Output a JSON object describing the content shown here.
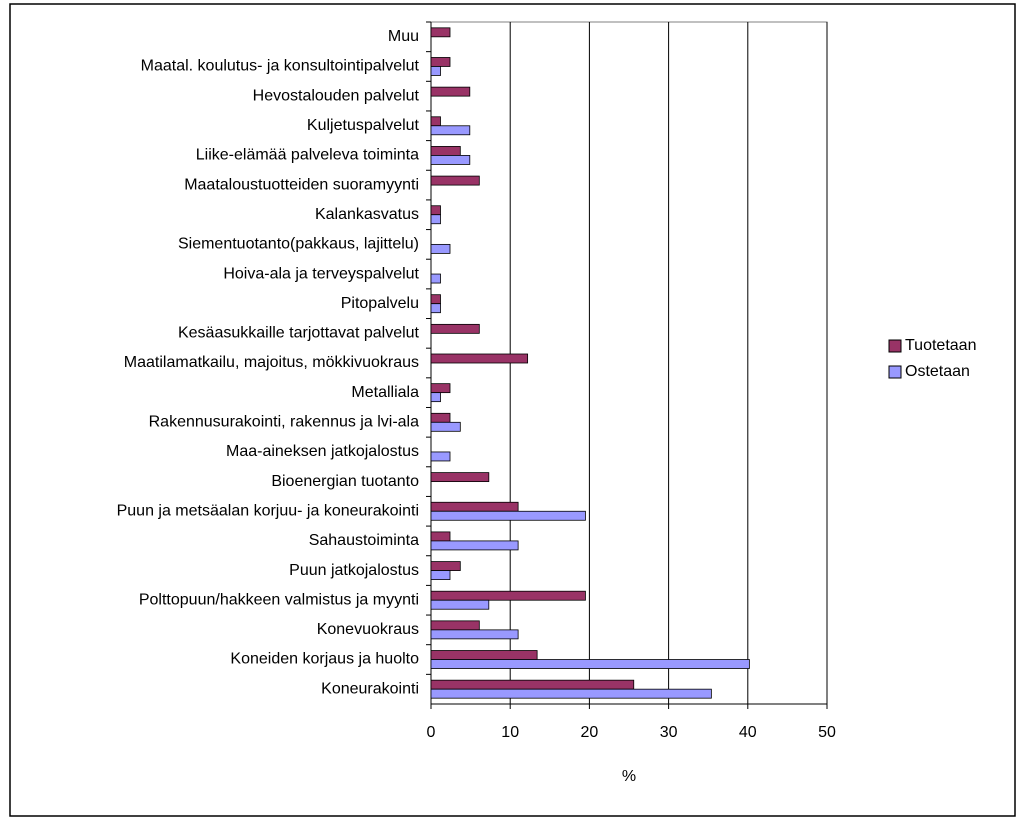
{
  "chart_data": {
    "type": "bar",
    "orientation": "horizontal",
    "categories": [
      "Muu",
      "Maatal. koulutus- ja konsultointipalvelut",
      "Hevostalouden palvelut",
      "Kuljetuspalvelut",
      "Liike-elämää palveleva toiminta",
      "Maataloustuotteiden suoramyynti",
      "Kalankasvatus",
      "Siementuotanto(pakkaus, lajittelu)",
      "Hoiva-ala ja terveyspalvelut",
      "Pitopalvelu",
      "Kesäasukkaille tarjottavat palvelut",
      "Maatilamatkailu, majoitus, mökkivuokraus",
      "Metalliala",
      "Rakennusurakointi, rakennus ja lvi-ala",
      "Maa-aineksen jatkojalostus",
      "Bioenergian tuotanto",
      "Puun ja metsäalan korjuu- ja koneurakointi",
      "Sahaustoiminta",
      "Puun jatkojalostus",
      "Polttopuun/hakkeen valmistus ja myynti",
      "Konevuokraus",
      "Koneiden korjaus ja huolto",
      "Koneurakointi"
    ],
    "series": [
      {
        "name": "Tuotetaan",
        "color": "#993366",
        "values": [
          2.4,
          2.4,
          4.9,
          1.2,
          3.7,
          6.1,
          1.2,
          0,
          0,
          1.2,
          6.1,
          12.2,
          2.4,
          2.4,
          0,
          7.3,
          11,
          2.4,
          3.7,
          19.5,
          6.1,
          13.4,
          25.6
        ]
      },
      {
        "name": "Ostetaan",
        "color": "#9999ff",
        "values": [
          0,
          1.2,
          0,
          4.9,
          4.9,
          0,
          1.2,
          2.4,
          1.2,
          1.2,
          0,
          0,
          1.2,
          3.7,
          2.4,
          0,
          19.5,
          11,
          2.4,
          7.3,
          11,
          40.2,
          35.4
        ]
      }
    ],
    "xlabel": "%",
    "xlim": [
      0,
      50
    ],
    "xticks": [
      0,
      10,
      20,
      30,
      40,
      50
    ],
    "grid": true,
    "legend": "right"
  }
}
